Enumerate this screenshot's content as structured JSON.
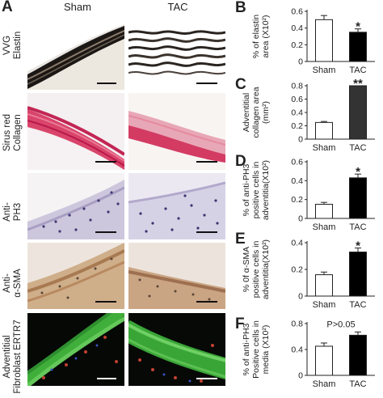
{
  "figure": {
    "panel_letters": [
      "A",
      "B",
      "C",
      "D",
      "E",
      "F"
    ],
    "columns": [
      "Sham",
      "TAC"
    ],
    "rows": [
      {
        "line1": "VVG",
        "line2": "Elastin"
      },
      {
        "line1": "Sirus red",
        "line2": "Collagen"
      },
      {
        "line1": "Anti-",
        "line2": "PH3"
      },
      {
        "line1": "Anti-",
        "line2": "α-SMA"
      },
      {
        "line1": "Adventitial",
        "line2": "Fibroblast ERTR7"
      }
    ]
  },
  "colors": {
    "sham_bar": "#ffffff",
    "tac_bar_B": "#000000",
    "tac_bar_C": "#333333",
    "tac_bar_D": "#000000",
    "tac_bar_E": "#000000",
    "tac_bar_F": "#000000"
  },
  "chart_data": [
    {
      "id": "B",
      "type": "bar",
      "categories": [
        "Sham",
        "TAC"
      ],
      "values": [
        0.5,
        0.35
      ],
      "errors": [
        0.05,
        0.04
      ],
      "ylabel_lines": [
        "% of elastin",
        "area (X10²)"
      ],
      "ylim": [
        0,
        0.6
      ],
      "yticks": [
        "0",
        "0.2",
        "0.4",
        "0.6"
      ],
      "annotation": "*"
    },
    {
      "id": "C",
      "type": "bar",
      "categories": [
        "Sham",
        "TAC"
      ],
      "values": [
        0.25,
        0.8
      ],
      "errors": [
        0.015,
        0.0
      ],
      "ylabel_lines": [
        "Adventitial",
        "collagen area",
        "(mm²)"
      ],
      "ylim": [
        0,
        0.8
      ],
      "yticks": [
        "0",
        "0.2",
        "0.4",
        "0.6",
        "0.8"
      ],
      "annotation": "**"
    },
    {
      "id": "D",
      "type": "bar",
      "categories": [
        "Sham",
        "TAC"
      ],
      "values": [
        0.15,
        0.43
      ],
      "errors": [
        0.02,
        0.04
      ],
      "ylabel_lines": [
        "% of anti-PH3",
        "positive cells in",
        "adventitia(X10²)"
      ],
      "ylim": [
        0,
        0.6
      ],
      "yticks": [
        "0",
        "0.2",
        "0.4",
        "0.6"
      ],
      "annotation": "*"
    },
    {
      "id": "E",
      "type": "bar",
      "categories": [
        "Sham",
        "TAC"
      ],
      "values": [
        0.16,
        0.33
      ],
      "errors": [
        0.02,
        0.03
      ],
      "ylabel_lines": [
        "% 0f α-SMA",
        "positive cells in",
        "adventitia(X10²)"
      ],
      "ylim": [
        0,
        0.4
      ],
      "yticks": [
        "0",
        "0.2",
        "0.4"
      ],
      "annotation": "*"
    },
    {
      "id": "F",
      "type": "bar",
      "categories": [
        "Sham",
        "TAC"
      ],
      "values": [
        0.45,
        0.62
      ],
      "errors": [
        0.05,
        0.05
      ],
      "ylabel_lines": [
        "% of anti-PH3",
        "Positive cells in",
        "media (X10²)"
      ],
      "ylim": [
        0,
        0.8
      ],
      "yticks": [
        "0",
        "0.4",
        "0.8"
      ],
      "annotation": "P>0.05"
    }
  ]
}
